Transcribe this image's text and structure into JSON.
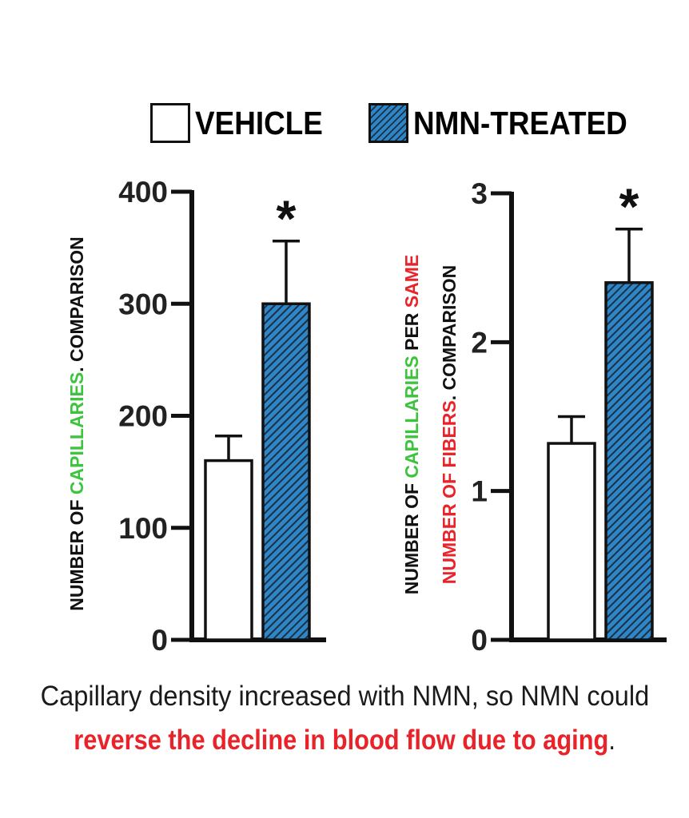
{
  "legend": [
    {
      "label": "VEHICLE",
      "style": "open"
    },
    {
      "label": "NMN-TREATED",
      "style": "hatched",
      "color": "#2f86c6"
    }
  ],
  "colors": {
    "green": "#3cc43c",
    "red": "#e8232a",
    "black": "#111111"
  },
  "chart_data": [
    {
      "type": "bar",
      "categories": [
        "VEHICLE",
        "NMN-TREATED"
      ],
      "values": [
        160,
        300
      ],
      "errors": [
        22,
        56
      ],
      "significance": [
        "",
        "*"
      ],
      "ylim": [
        0,
        400
      ],
      "yticks": [
        "0",
        "100",
        "200",
        "300",
        "400"
      ],
      "ylabel_parts": [
        {
          "text": "NUMBER OF ",
          "color": "black",
          "line": 1
        },
        {
          "text": "CAPILLARIES",
          "color": "green",
          "line": 1
        },
        {
          "text": ". COMPARISON",
          "color": "black",
          "line": 1
        }
      ]
    },
    {
      "type": "bar",
      "categories": [
        "VEHICLE",
        "NMN-TREATED"
      ],
      "values": [
        1.32,
        2.4
      ],
      "errors": [
        0.18,
        0.36
      ],
      "significance": [
        "",
        "*"
      ],
      "ylim": [
        0,
        3
      ],
      "yticks": [
        "0",
        "1",
        "2",
        "3"
      ],
      "ylabel_parts": [
        {
          "text": "NUMBER OF ",
          "color": "black",
          "line": 1
        },
        {
          "text": "CAPILLARIES",
          "color": "green",
          "line": 1
        },
        {
          "text": " PER ",
          "color": "black",
          "line": 1
        },
        {
          "text": "SAME",
          "color": "red",
          "line": 1
        },
        {
          "text": "NUMBER OF FIBERS",
          "color": "red",
          "line": 2
        },
        {
          "text": ". COMPARISON",
          "color": "black",
          "line": 2
        }
      ]
    }
  ],
  "caption": {
    "line1": "Capillary density increased with NMN, so NMN could",
    "line2": "reverse the decline in blood flow due to aging",
    "line2_end": "."
  }
}
